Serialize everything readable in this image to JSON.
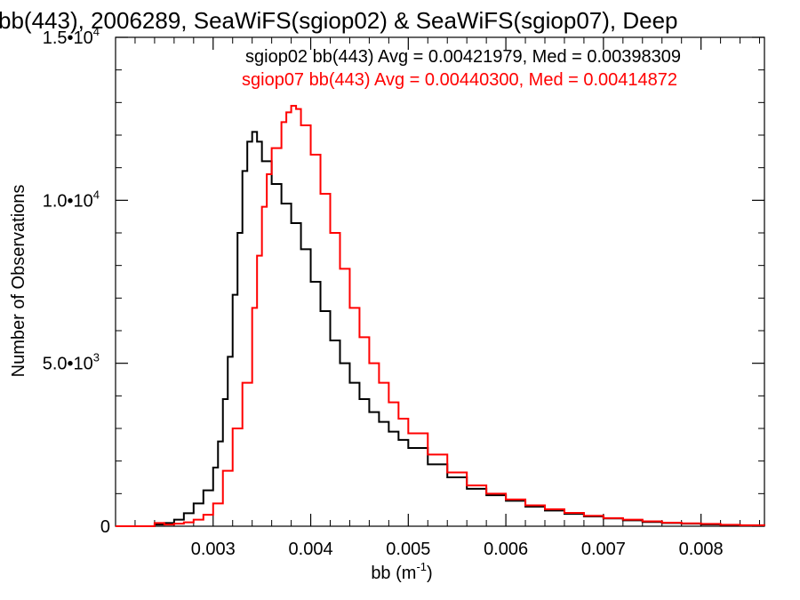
{
  "chart_data": {
    "type": "line",
    "title": "bb(443), 2006289, SeaWiFS(sgiop02) & SeaWiFS(sgiop07), Deep",
    "xlabel_base": "bb (m",
    "xlabel_sup": "-1",
    "xlabel_close": ")",
    "ylabel": "Number of Observations",
    "xlim": [
      0.002,
      0.00865
    ],
    "ylim": [
      0,
      15000
    ],
    "x_ticks": [
      {
        "value": 0.003,
        "label": "0.003"
      },
      {
        "value": 0.004,
        "label": "0.004"
      },
      {
        "value": 0.005,
        "label": "0.005"
      },
      {
        "value": 0.006,
        "label": "0.006"
      },
      {
        "value": 0.007,
        "label": "0.007"
      },
      {
        "value": 0.008,
        "label": "0.008"
      }
    ],
    "y_ticks": [
      {
        "value": 0,
        "mant": "0",
        "exp": ""
      },
      {
        "value": 5000,
        "mant": "5.0•10",
        "exp": "3"
      },
      {
        "value": 10000,
        "mant": "1.0•10",
        "exp": "4"
      },
      {
        "value": 15000,
        "mant": "1.5•10",
        "exp": "4"
      }
    ],
    "grid": false,
    "series": [
      {
        "name": "sgiop02 bb(443)",
        "color": "#000000",
        "legend": "sgiop02 bb(443) Avg = 0.00421979, Med = 0.00398309",
        "x": [
          0.002,
          0.0022,
          0.0024,
          0.0025,
          0.0026,
          0.0027,
          0.0028,
          0.0029,
          0.003,
          0.00305,
          0.0031,
          0.00315,
          0.0032,
          0.00325,
          0.0033,
          0.00335,
          0.0034,
          0.00345,
          0.0035,
          0.0036,
          0.0037,
          0.0038,
          0.0039,
          0.004,
          0.0041,
          0.0042,
          0.0043,
          0.0044,
          0.0045,
          0.0046,
          0.0047,
          0.0048,
          0.0049,
          0.005,
          0.0052,
          0.0054,
          0.0056,
          0.0058,
          0.006,
          0.0062,
          0.0064,
          0.0066,
          0.0068,
          0.007,
          0.0072,
          0.0074,
          0.0076,
          0.0078,
          0.008,
          0.0082,
          0.0084,
          0.00865
        ],
        "y": [
          0,
          0,
          50,
          100,
          200,
          400,
          700,
          1100,
          1800,
          2600,
          3900,
          5200,
          7100,
          9000,
          10900,
          11800,
          12100,
          11800,
          11200,
          10500,
          9900,
          9300,
          8500,
          7500,
          6600,
          5700,
          5000,
          4400,
          3900,
          3500,
          3200,
          2900,
          2650,
          2400,
          1900,
          1500,
          1150,
          950,
          780,
          600,
          480,
          380,
          300,
          240,
          180,
          130,
          100,
          80,
          55,
          40,
          25,
          20
        ]
      },
      {
        "name": "sgiop07 bb(443)",
        "color": "#ff0000",
        "legend": "sgiop07 bb(443) Avg = 0.00440300, Med = 0.00414872",
        "x": [
          0.002,
          0.0022,
          0.0024,
          0.0025,
          0.0026,
          0.0027,
          0.0028,
          0.0029,
          0.003,
          0.0031,
          0.0032,
          0.0033,
          0.0034,
          0.00345,
          0.0035,
          0.00355,
          0.0036,
          0.0037,
          0.00375,
          0.0038,
          0.00385,
          0.0039,
          0.004,
          0.0041,
          0.0042,
          0.0043,
          0.0044,
          0.0045,
          0.0046,
          0.0047,
          0.0048,
          0.0049,
          0.005,
          0.0052,
          0.0054,
          0.0056,
          0.0058,
          0.006,
          0.0062,
          0.0064,
          0.0066,
          0.0068,
          0.007,
          0.0072,
          0.0074,
          0.0076,
          0.0078,
          0.008,
          0.0082,
          0.0084,
          0.00865
        ],
        "y": [
          0,
          0,
          100,
          50,
          80,
          120,
          200,
          350,
          700,
          1700,
          3000,
          4400,
          6700,
          8300,
          9800,
          10800,
          11600,
          12400,
          12700,
          12900,
          12800,
          12300,
          11400,
          10200,
          9000,
          7900,
          6700,
          5800,
          5000,
          4400,
          3800,
          3300,
          2850,
          2200,
          1650,
          1250,
          1000,
          820,
          640,
          520,
          410,
          320,
          250,
          200,
          150,
          110,
          90,
          70,
          45,
          30,
          20
        ]
      }
    ]
  }
}
